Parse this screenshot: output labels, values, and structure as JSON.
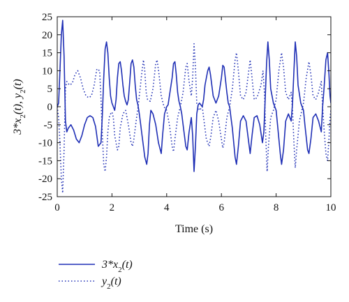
{
  "chart_data": {
    "type": "line",
    "xlabel": "Time (s)",
    "ylabel": "3*x",
    "ylabel_sub": "2",
    "ylabel_rest": "(t), y",
    "ylabel_sub2": "2",
    "ylabel_end": "(t)",
    "xlim": [
      0,
      10
    ],
    "ylim": [
      -25,
      25
    ],
    "xticks": [
      0,
      2,
      4,
      6,
      8,
      10
    ],
    "yticks": [
      -25,
      -20,
      -15,
      -10,
      -5,
      0,
      5,
      10,
      15,
      20,
      25
    ],
    "xtick_labels": [
      "0",
      "2",
      "4",
      "6",
      "8",
      "10"
    ],
    "ytick_labels": [
      "-25",
      "-20",
      "-15",
      "-10",
      "-5",
      "0",
      "5",
      "10",
      "15",
      "20",
      "25"
    ],
    "grid": false,
    "legend_placement": "below",
    "series": [
      {
        "legend_main": "3*x",
        "legend_sub": "2",
        "legend_end": "(t)",
        "color": "#1f2fb5",
        "line_style": "solid",
        "points": [
          [
            0,
            0
          ],
          [
            0.05,
            1
          ],
          [
            0.1,
            10
          ],
          [
            0.15,
            20
          ],
          [
            0.2,
            24
          ],
          [
            0.25,
            14
          ],
          [
            0.3,
            -4
          ],
          [
            0.35,
            -7
          ],
          [
            0.4,
            -6
          ],
          [
            0.5,
            -5
          ],
          [
            0.6,
            -6.5
          ],
          [
            0.7,
            -9
          ],
          [
            0.8,
            -10
          ],
          [
            0.9,
            -8
          ],
          [
            1.0,
            -5
          ],
          [
            1.1,
            -3
          ],
          [
            1.2,
            -2.5
          ],
          [
            1.3,
            -3
          ],
          [
            1.4,
            -5.5
          ],
          [
            1.5,
            -11
          ],
          [
            1.6,
            -10
          ],
          [
            1.65,
            -2
          ],
          [
            1.7,
            8
          ],
          [
            1.75,
            16
          ],
          [
            1.8,
            18
          ],
          [
            1.85,
            15
          ],
          [
            1.9,
            8
          ],
          [
            1.95,
            3
          ],
          [
            2.0,
            1
          ],
          [
            2.05,
            0
          ],
          [
            2.1,
            -1
          ],
          [
            2.15,
            2
          ],
          [
            2.2,
            8
          ],
          [
            2.25,
            12
          ],
          [
            2.3,
            12.5
          ],
          [
            2.35,
            10
          ],
          [
            2.4,
            6
          ],
          [
            2.45,
            3
          ],
          [
            2.5,
            1.5
          ],
          [
            2.55,
            0.5
          ],
          [
            2.6,
            2
          ],
          [
            2.65,
            7
          ],
          [
            2.7,
            12
          ],
          [
            2.75,
            13
          ],
          [
            2.8,
            11
          ],
          [
            2.85,
            6
          ],
          [
            2.9,
            2
          ],
          [
            2.95,
            0.5
          ],
          [
            3.0,
            -2
          ],
          [
            3.05,
            -5
          ],
          [
            3.1,
            -8
          ],
          [
            3.15,
            -11
          ],
          [
            3.2,
            -14
          ],
          [
            3.27,
            -16
          ],
          [
            3.32,
            -13
          ],
          [
            3.37,
            -5
          ],
          [
            3.42,
            -1
          ],
          [
            3.5,
            -2
          ],
          [
            3.6,
            -5
          ],
          [
            3.7,
            -10
          ],
          [
            3.8,
            -13
          ],
          [
            3.85,
            -8
          ],
          [
            3.92,
            -2
          ],
          [
            4.0,
            0
          ],
          [
            4.05,
            0.5
          ],
          [
            4.1,
            3
          ],
          [
            4.2,
            8
          ],
          [
            4.25,
            12
          ],
          [
            4.3,
            12.5
          ],
          [
            4.35,
            9
          ],
          [
            4.4,
            4
          ],
          [
            4.45,
            1.5
          ],
          [
            4.5,
            0
          ],
          [
            4.55,
            -2
          ],
          [
            4.6,
            -5
          ],
          [
            4.7,
            -11
          ],
          [
            4.75,
            -12
          ],
          [
            4.82,
            -7
          ],
          [
            4.9,
            -3
          ],
          [
            4.95,
            -8
          ],
          [
            5.0,
            -18
          ],
          [
            5.05,
            -11
          ],
          [
            5.1,
            -2
          ],
          [
            5.15,
            0.5
          ],
          [
            5.2,
            1
          ],
          [
            5.3,
            0
          ],
          [
            5.35,
            2
          ],
          [
            5.4,
            6
          ],
          [
            5.5,
            10
          ],
          [
            5.55,
            11
          ],
          [
            5.6,
            9
          ],
          [
            5.7,
            3
          ],
          [
            5.8,
            1
          ],
          [
            5.9,
            3
          ],
          [
            6.0,
            8
          ],
          [
            6.05,
            11.5
          ],
          [
            6.1,
            11
          ],
          [
            6.2,
            4
          ],
          [
            6.25,
            1
          ],
          [
            6.3,
            0
          ],
          [
            6.35,
            -3
          ],
          [
            6.4,
            -6
          ],
          [
            6.5,
            -14
          ],
          [
            6.55,
            -16
          ],
          [
            6.62,
            -11
          ],
          [
            6.7,
            -4
          ],
          [
            6.8,
            -2.5
          ],
          [
            6.9,
            -4
          ],
          [
            7.0,
            -10
          ],
          [
            7.05,
            -13
          ],
          [
            7.12,
            -8
          ],
          [
            7.2,
            -3
          ],
          [
            7.3,
            -2.5
          ],
          [
            7.4,
            -5
          ],
          [
            7.5,
            -10
          ],
          [
            7.55,
            -7
          ],
          [
            7.6,
            2
          ],
          [
            7.65,
            12
          ],
          [
            7.7,
            18
          ],
          [
            7.75,
            13
          ],
          [
            7.8,
            5
          ],
          [
            7.9,
            1
          ],
          [
            8.0,
            -1
          ],
          [
            8.05,
            -5
          ],
          [
            8.15,
            -13
          ],
          [
            8.2,
            -16
          ],
          [
            8.27,
            -12
          ],
          [
            8.35,
            -4
          ],
          [
            8.45,
            -2
          ],
          [
            8.55,
            -4
          ],
          [
            8.6,
            1
          ],
          [
            8.65,
            10
          ],
          [
            8.7,
            18
          ],
          [
            8.75,
            14
          ],
          [
            8.8,
            6
          ],
          [
            8.9,
            1
          ],
          [
            9.0,
            -1
          ],
          [
            9.05,
            -5
          ],
          [
            9.15,
            -12
          ],
          [
            9.2,
            -13
          ],
          [
            9.27,
            -9
          ],
          [
            9.35,
            -3
          ],
          [
            9.45,
            -2
          ],
          [
            9.55,
            -4
          ],
          [
            9.65,
            -7
          ],
          [
            9.7,
            0
          ],
          [
            9.75,
            5
          ],
          [
            9.82,
            13
          ],
          [
            9.88,
            15
          ],
          [
            9.93,
            9
          ],
          [
            9.97,
            3
          ],
          [
            10.0,
            1
          ]
        ]
      },
      {
        "legend_main": "y",
        "legend_sub": "2",
        "legend_end": "(t)",
        "color": "#1f2fb5",
        "line_style": "dotted",
        "points": [
          [
            0,
            0
          ],
          [
            0.05,
            -3
          ],
          [
            0.1,
            -10
          ],
          [
            0.15,
            -20
          ],
          [
            0.2,
            -24
          ],
          [
            0.25,
            -12
          ],
          [
            0.3,
            5
          ],
          [
            0.35,
            7
          ],
          [
            0.45,
            6
          ],
          [
            0.55,
            6.5
          ],
          [
            0.65,
            9
          ],
          [
            0.75,
            10
          ],
          [
            0.85,
            8
          ],
          [
            0.95,
            5
          ],
          [
            1.05,
            3
          ],
          [
            1.15,
            2.5
          ],
          [
            1.25,
            3
          ],
          [
            1.35,
            6
          ],
          [
            1.45,
            10.5
          ],
          [
            1.55,
            10
          ],
          [
            1.6,
            2
          ],
          [
            1.65,
            -8
          ],
          [
            1.7,
            -16
          ],
          [
            1.75,
            -18
          ],
          [
            1.8,
            -14
          ],
          [
            1.85,
            -7
          ],
          [
            1.9,
            -3
          ],
          [
            1.95,
            -2
          ],
          [
            2.0,
            -1.5
          ],
          [
            2.05,
            -3
          ],
          [
            2.1,
            -8
          ],
          [
            2.2,
            -12
          ],
          [
            2.25,
            -11
          ],
          [
            2.3,
            -6
          ],
          [
            2.4,
            -2
          ],
          [
            2.5,
            -1
          ],
          [
            2.6,
            -5
          ],
          [
            2.7,
            -10
          ],
          [
            2.75,
            -11
          ],
          [
            2.8,
            -9
          ],
          [
            2.9,
            -3
          ],
          [
            2.95,
            -0.5
          ],
          [
            3.0,
            3
          ],
          [
            3.1,
            10
          ],
          [
            3.15,
            13
          ],
          [
            3.2,
            10
          ],
          [
            3.25,
            4
          ],
          [
            3.3,
            2
          ],
          [
            3.4,
            1.5
          ],
          [
            3.5,
            5
          ],
          [
            3.6,
            12
          ],
          [
            3.65,
            13
          ],
          [
            3.72,
            9
          ],
          [
            3.8,
            3
          ],
          [
            3.9,
            0
          ],
          [
            4.0,
            -1
          ],
          [
            4.1,
            -5
          ],
          [
            4.2,
            -11
          ],
          [
            4.25,
            -12.5
          ],
          [
            4.3,
            -9
          ],
          [
            4.4,
            -3
          ],
          [
            4.5,
            0
          ],
          [
            4.6,
            4
          ],
          [
            4.7,
            11
          ],
          [
            4.75,
            12
          ],
          [
            4.82,
            7
          ],
          [
            4.9,
            3
          ],
          [
            4.95,
            8
          ],
          [
            5.0,
            17.5
          ],
          [
            5.05,
            11
          ],
          [
            5.1,
            1
          ],
          [
            5.2,
            -1
          ],
          [
            5.3,
            0
          ],
          [
            5.35,
            -3
          ],
          [
            5.45,
            -9
          ],
          [
            5.55,
            -11
          ],
          [
            5.62,
            -8
          ],
          [
            5.7,
            -3
          ],
          [
            5.8,
            -1
          ],
          [
            5.9,
            -4
          ],
          [
            6.0,
            -9
          ],
          [
            6.05,
            -11.5
          ],
          [
            6.1,
            -10
          ],
          [
            6.2,
            -3
          ],
          [
            6.3,
            0
          ],
          [
            6.4,
            5
          ],
          [
            6.5,
            13
          ],
          [
            6.55,
            15
          ],
          [
            6.62,
            10
          ],
          [
            6.7,
            3
          ],
          [
            6.8,
            2
          ],
          [
            6.9,
            4
          ],
          [
            7.0,
            10
          ],
          [
            7.05,
            13
          ],
          [
            7.12,
            8
          ],
          [
            7.2,
            2
          ],
          [
            7.3,
            2.5
          ],
          [
            7.45,
            6
          ],
          [
            7.52,
            10
          ],
          [
            7.58,
            3
          ],
          [
            7.62,
            -8
          ],
          [
            7.67,
            -18
          ],
          [
            7.72,
            -11
          ],
          [
            7.8,
            -3
          ],
          [
            7.9,
            -1
          ],
          [
            8.0,
            2
          ],
          [
            8.1,
            10
          ],
          [
            8.2,
            15
          ],
          [
            8.27,
            11
          ],
          [
            8.35,
            4
          ],
          [
            8.45,
            2
          ],
          [
            8.55,
            4
          ],
          [
            8.6,
            -1
          ],
          [
            8.65,
            -10
          ],
          [
            8.7,
            -17
          ],
          [
            8.75,
            -12
          ],
          [
            8.85,
            -4
          ],
          [
            9.0,
            1
          ],
          [
            9.1,
            8
          ],
          [
            9.2,
            12.5
          ],
          [
            9.27,
            9
          ],
          [
            9.35,
            3
          ],
          [
            9.45,
            2
          ],
          [
            9.55,
            4
          ],
          [
            9.65,
            7
          ],
          [
            9.7,
            0
          ],
          [
            9.75,
            -6
          ],
          [
            9.82,
            -13
          ],
          [
            9.88,
            -15
          ],
          [
            9.93,
            -9
          ],
          [
            9.97,
            -3
          ],
          [
            10.0,
            -1
          ]
        ]
      }
    ]
  }
}
